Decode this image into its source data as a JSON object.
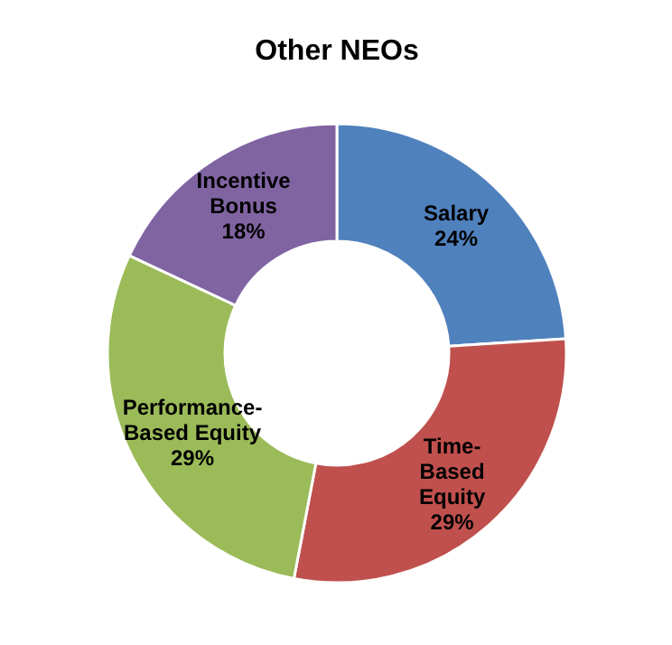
{
  "chart_data": {
    "type": "donut",
    "title": "Other NEOs",
    "categories": [
      "Salary",
      "Time-\nBased\nEquity",
      "Performance-\nBased Equity",
      "Incentive\nBonus"
    ],
    "values": [
      24,
      29,
      29,
      18
    ],
    "colors": [
      "#4f81bd",
      "#c0504d",
      "#9bbb59",
      "#8064a2"
    ],
    "value_labels": [
      "24%",
      "29%",
      "29%",
      "18%"
    ]
  }
}
